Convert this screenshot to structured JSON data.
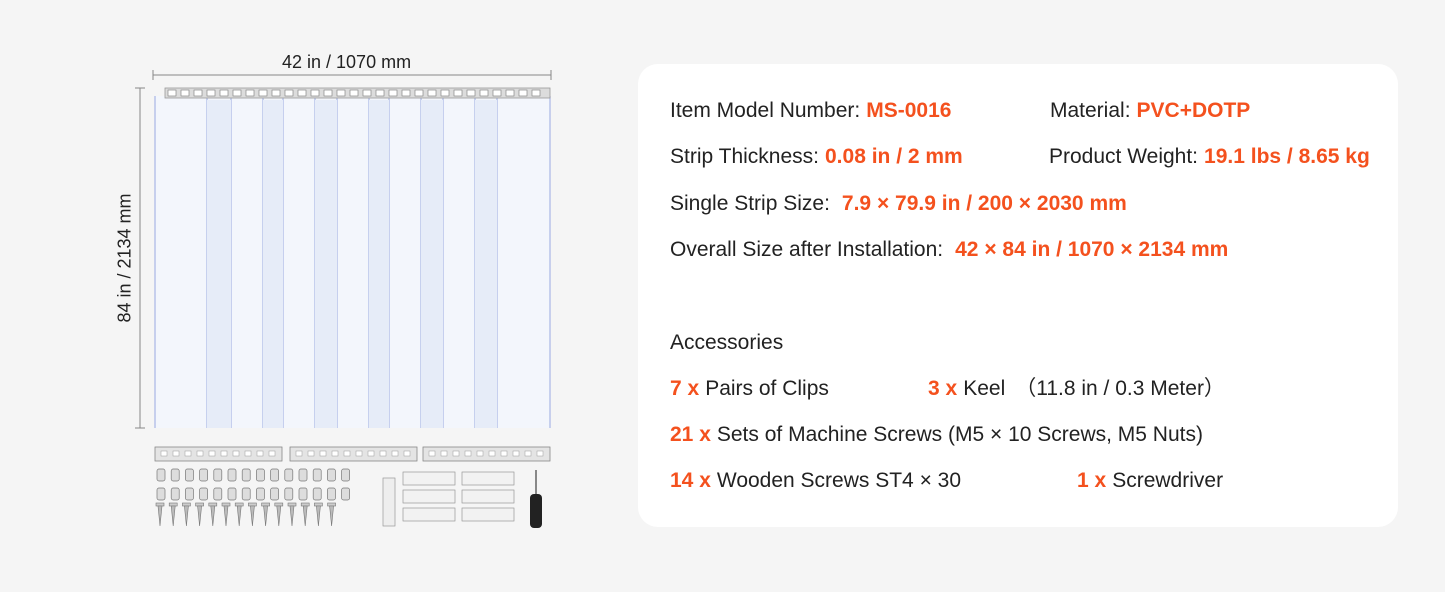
{
  "dimensions": {
    "width": "42 in / 1070 mm",
    "height": "84 in / 2134 mm"
  },
  "specs": [
    {
      "label": "Item Model Number:",
      "value": "MS-0016"
    },
    {
      "label": "Material:",
      "value": "PVC+DOTP"
    },
    {
      "label": "Strip Thickness:",
      "value": "0.08 in / 2 mm"
    },
    {
      "label": "Product Weight:",
      "value": "19.1 lbs / 8.65 kg"
    },
    {
      "label": "Single Strip Size:",
      "value": "7.9 × 79.9 in / 200 × 2030 mm"
    },
    {
      "label": "Overall Size after Installation:",
      "value": "42 × 84 in / 1070 × 2134 mm"
    }
  ],
  "accessories": {
    "title": "Accessories",
    "items": [
      {
        "qty": "7 x",
        "text": "Pairs of Clips"
      },
      {
        "qty": "3 x",
        "text": "Keel",
        "note": "（11.8 in / 0.3 Meter）"
      },
      {
        "qty": "21 x",
        "text": "Sets of Machine Screws (M5 × 10 Screws, M5 Nuts)"
      },
      {
        "qty": "14 x",
        "text": "Wooden Screws ST4 × 30"
      },
      {
        "qty": "1 x",
        "text": "Screwdriver"
      }
    ]
  }
}
